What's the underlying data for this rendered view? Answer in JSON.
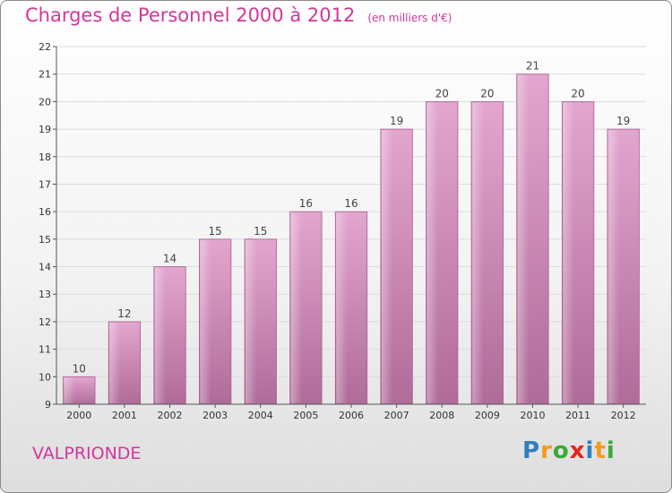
{
  "chart_data": {
    "type": "bar",
    "title": "Charges de Personnel 2000 à 2012",
    "subtitle": "(en milliers d'€)",
    "categories": [
      "2000",
      "2001",
      "2002",
      "2003",
      "2004",
      "2005",
      "2006",
      "2007",
      "2008",
      "2009",
      "2010",
      "2011",
      "2012"
    ],
    "values": [
      10,
      12,
      14,
      15,
      15,
      16,
      16,
      19,
      20,
      20,
      21,
      20,
      19
    ],
    "ylim": [
      9,
      22
    ],
    "yticks": [
      9,
      10,
      11,
      12,
      13,
      14,
      15,
      16,
      17,
      18,
      19,
      20,
      21,
      22
    ],
    "xlabel": "",
    "ylabel": "",
    "grid": true,
    "bar_color": "#c27fae"
  },
  "footer": {
    "town": "VALPRIONDE",
    "logo_letters": [
      {
        "ch": "P",
        "color": "#2f7fc1"
      },
      {
        "ch": "r",
        "color": "#f39a1a"
      },
      {
        "ch": "o",
        "color": "#3aa935"
      },
      {
        "ch": "x",
        "color": "#e2261c"
      },
      {
        "ch": "i",
        "color": "#2f7fc1"
      },
      {
        "ch": "t",
        "color": "#f39a1a"
      },
      {
        "ch": "i",
        "color": "#3aa935"
      }
    ]
  },
  "colors": {
    "title": "#d2369c",
    "grid": "#dcdcdc"
  }
}
